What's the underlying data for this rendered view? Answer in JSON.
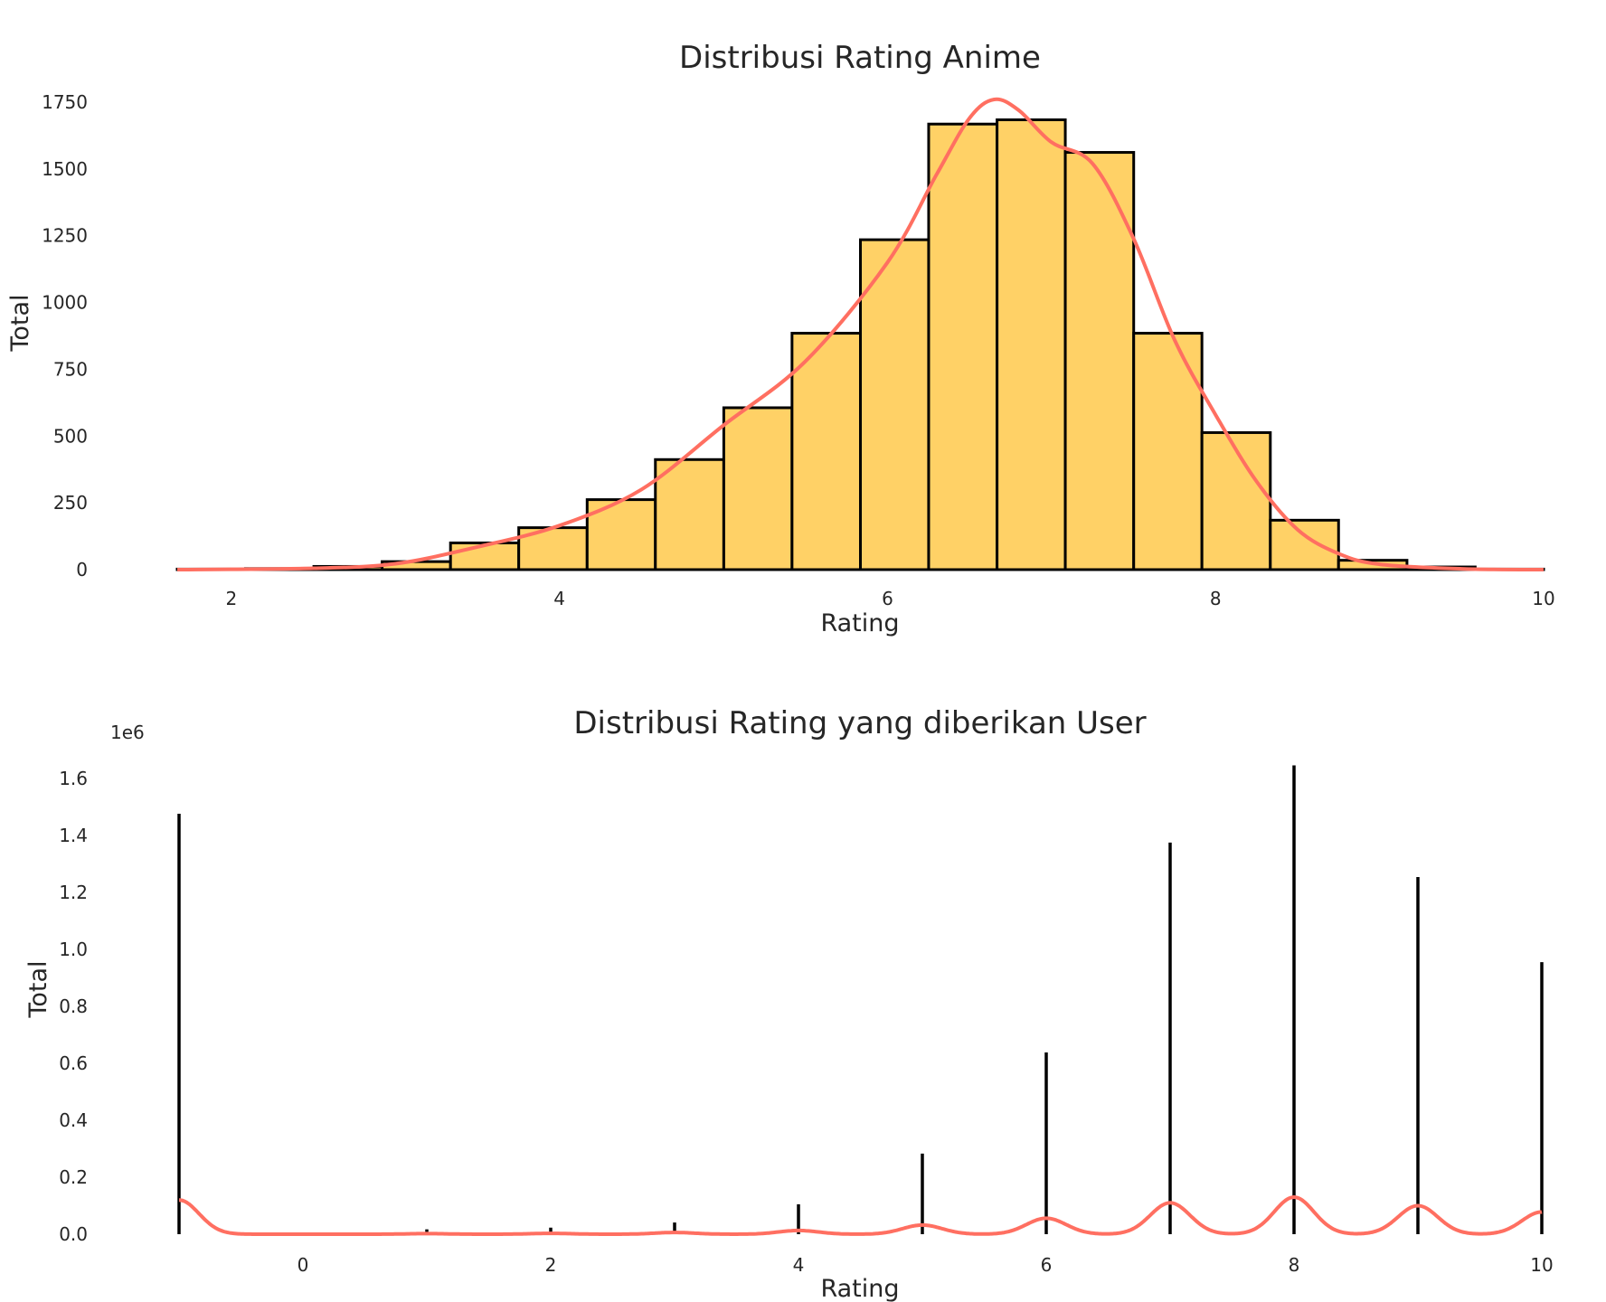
{
  "colors": {
    "bar_fill": "#FFD166",
    "bar_edge": "#000000",
    "kde": "#FF6F61",
    "text": "#262626"
  },
  "chart_data": [
    {
      "type": "bar",
      "title": "Distribusi Rating Anime",
      "xlabel": "Rating",
      "ylabel": "Total",
      "xlim": [
        1.67,
        10.0
      ],
      "ylim": [
        0,
        1800
      ],
      "xticks": [
        2,
        4,
        6,
        8,
        10
      ],
      "xtick_labels": [
        "2",
        "4",
        "6",
        "8",
        "10"
      ],
      "yticks": [
        0,
        250,
        500,
        750,
        1000,
        1250,
        1500,
        1750
      ],
      "ytick_labels": [
        "0",
        "250",
        "500",
        "750",
        "1000",
        "1250",
        "1500",
        "1750"
      ],
      "bin_edges": [
        1.67,
        2.086,
        2.503,
        2.919,
        3.336,
        3.752,
        4.169,
        4.585,
        5.002,
        5.418,
        5.835,
        6.251,
        6.668,
        7.084,
        7.501,
        7.917,
        8.334,
        8.75,
        9.167,
        9.583,
        10.0
      ],
      "values": [
        2,
        4,
        12,
        30,
        100,
        157,
        262,
        412,
        606,
        885,
        1235,
        1668,
        1684,
        1562,
        885,
        513,
        185,
        35,
        10,
        2
      ],
      "kde": {
        "x": [
          1.67,
          2.5,
          3.0,
          3.5,
          4.0,
          4.5,
          5.0,
          5.5,
          6.0,
          6.3,
          6.5,
          6.65,
          6.8,
          7.0,
          7.25,
          7.5,
          7.75,
          8.0,
          8.25,
          8.5,
          8.75,
          9.0,
          9.5,
          10.0
        ],
        "y": [
          0,
          5,
          22,
          85,
          165,
          300,
          540,
          780,
          1150,
          1480,
          1690,
          1760,
          1720,
          1600,
          1520,
          1240,
          860,
          580,
          330,
          150,
          60,
          20,
          3,
          0
        ]
      }
    },
    {
      "type": "bar",
      "title": "Distribusi Rating yang diberikan User",
      "xlabel": "Rating",
      "ylabel": "Total",
      "offset_label": "1e6",
      "xlim": [
        -1.0,
        10.0
      ],
      "ylim": [
        0,
        1.65
      ],
      "xticks": [
        0,
        2,
        4,
        6,
        8,
        10
      ],
      "xtick_labels": [
        "0",
        "2",
        "4",
        "6",
        "8",
        "10"
      ],
      "yticks": [
        0.0,
        0.2,
        0.4,
        0.6,
        0.8,
        1.0,
        1.2,
        1.4,
        1.6
      ],
      "ytick_labels": [
        "0.0",
        "0.2",
        "0.4",
        "0.6",
        "0.8",
        "1.0",
        "1.2",
        "1.4",
        "1.6"
      ],
      "categories": [
        -1,
        1,
        2,
        3,
        4,
        5,
        6,
        7,
        8,
        9,
        10
      ],
      "values": [
        1.476,
        0.017,
        0.023,
        0.041,
        0.105,
        0.283,
        0.638,
        1.375,
        1.646,
        1.254,
        0.955
      ],
      "kde_peaks": [
        0.12,
        0.002,
        0.003,
        0.006,
        0.013,
        0.032,
        0.056,
        0.11,
        0.13,
        0.1,
        0.078
      ]
    }
  ]
}
